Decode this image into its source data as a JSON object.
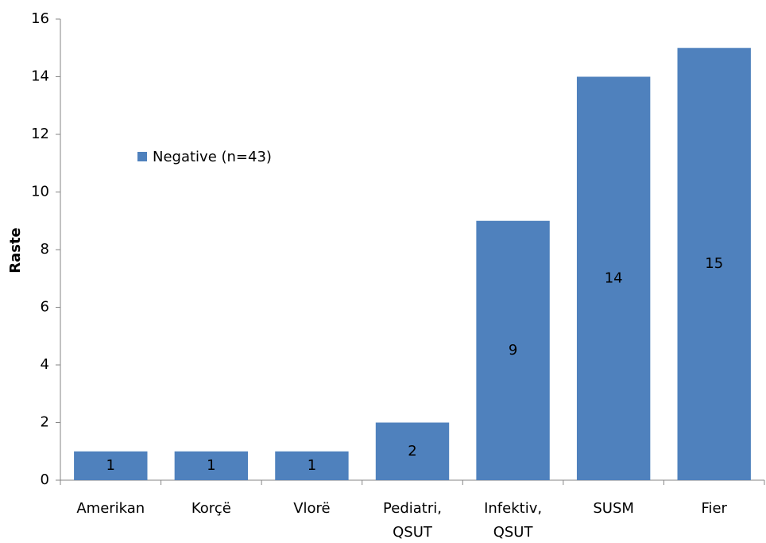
{
  "chart_data": {
    "type": "bar",
    "y_label": "Raste",
    "categories": [
      "Amerikan",
      "Korçë",
      "Vlorë",
      "Pediatri, QSUT",
      "Infektiv, QSUT",
      "SUSM",
      "Fier"
    ],
    "series": [
      {
        "name": "Negative (n=43)",
        "color": "#4f81bd",
        "values": [
          1,
          1,
          1,
          2,
          9,
          14,
          15
        ]
      }
    ],
    "ylim": [
      0,
      16
    ],
    "yticks": [
      0,
      2,
      4,
      6,
      8,
      10,
      12,
      14,
      16
    ],
    "grid": false,
    "legend": "upper-left"
  }
}
